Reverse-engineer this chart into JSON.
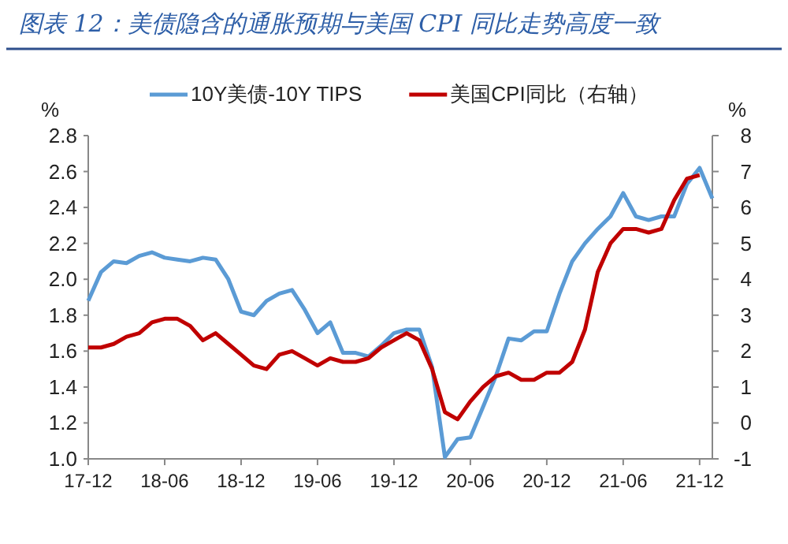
{
  "chart_data": {
    "type": "line",
    "title": "图表 12：美债隐含的通胀预期与美国 CPI 同比走势高度一致",
    "ylabel": "%",
    "y2label": "%",
    "legend": "top",
    "grid": false,
    "categories": [
      "17-12",
      null,
      null,
      null,
      null,
      null,
      "18-06",
      null,
      null,
      null,
      null,
      null,
      "18-12",
      null,
      null,
      null,
      null,
      null,
      "19-06",
      null,
      null,
      null,
      null,
      null,
      "19-12",
      null,
      null,
      null,
      null,
      null,
      "20-06",
      null,
      null,
      null,
      null,
      null,
      "20-12",
      null,
      null,
      null,
      null,
      null,
      "21-06",
      null,
      null,
      null,
      null,
      null,
      "21-12",
      null
    ],
    "ylim": [
      1.0,
      2.8
    ],
    "yticks": [
      {
        "value": 1.0,
        "label": "1.0"
      },
      {
        "value": 1.2,
        "label": "1.2"
      },
      {
        "value": 1.4,
        "label": "1.4"
      },
      {
        "value": 1.6,
        "label": "1.6"
      },
      {
        "value": 1.8,
        "label": "1.8"
      },
      {
        "value": 2.0,
        "label": "2.0"
      },
      {
        "value": 2.2,
        "label": "2.2"
      },
      {
        "value": 2.4,
        "label": "2.4"
      },
      {
        "value": 2.6,
        "label": "2.6"
      },
      {
        "value": 2.8,
        "label": "2.8"
      }
    ],
    "y2lim": [
      -1,
      8
    ],
    "y2ticks": [
      -1,
      0,
      1,
      2,
      3,
      4,
      5,
      6,
      7,
      8
    ],
    "series": [
      {
        "name": "10Y美债-10Y TIPS",
        "color": "#5b9bd5",
        "values": [
          1.88,
          2.04,
          2.1,
          2.09,
          2.13,
          2.15,
          2.12,
          2.11,
          2.1,
          2.12,
          2.11,
          2.0,
          1.82,
          1.8,
          1.88,
          1.92,
          1.94,
          1.83,
          1.7,
          1.76,
          1.59,
          1.59,
          1.57,
          1.63,
          1.7,
          1.72,
          1.72,
          1.51,
          1.01,
          1.11,
          1.12,
          1.29,
          1.46,
          1.67,
          1.66,
          1.71,
          1.71,
          1.92,
          2.1,
          2.2,
          2.28,
          2.35,
          2.48,
          2.35,
          2.33,
          2.35,
          2.35,
          2.53,
          2.62,
          2.45
        ]
      },
      {
        "name": "美国CPI同比（右轴）",
        "color": "#c00000",
        "axis": "y2",
        "values": [
          2.1,
          2.1,
          2.2,
          2.4,
          2.5,
          2.8,
          2.9,
          2.9,
          2.7,
          2.3,
          2.5,
          2.2,
          1.9,
          1.6,
          1.5,
          1.9,
          2.0,
          1.8,
          1.6,
          1.8,
          1.7,
          1.7,
          1.8,
          2.1,
          2.3,
          2.5,
          2.3,
          1.5,
          0.3,
          0.1,
          0.6,
          1.0,
          1.3,
          1.4,
          1.2,
          1.2,
          1.4,
          1.4,
          1.7,
          2.6,
          4.2,
          5.0,
          5.4,
          5.4,
          5.3,
          5.4,
          6.2,
          6.8,
          6.9,
          null
        ]
      }
    ]
  }
}
